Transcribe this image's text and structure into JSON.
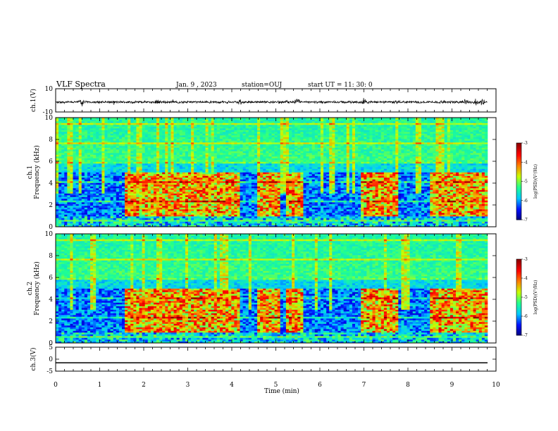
{
  "header": {
    "title": "VLF Spectra",
    "date": "Jan. 9 , 2023",
    "station": "station=OUJ",
    "start": "start  UT =   11: 30: 0"
  },
  "chart_data": [
    {
      "type": "line",
      "panel": "waveform-ch1",
      "ylabel": "ch.1(V)",
      "ylim": [
        -10,
        10
      ],
      "yticks": [
        "10",
        "-10"
      ],
      "xlim": [
        0,
        10
      ],
      "baseline": -1.5,
      "noise_amplitude": 0.8,
      "bursts_min": [
        0.6,
        2.3,
        4.2,
        5.5,
        7.0,
        9.3,
        9.55,
        9.7
      ],
      "color": "#000000"
    },
    {
      "type": "heatmap",
      "panel": "spectrogram-ch1",
      "ylabel": "ch.1\nFrequency (kHz)",
      "ylim": [
        0,
        10
      ],
      "yticks": [
        "0",
        "2",
        "4",
        "6",
        "8",
        "10"
      ],
      "xlim": [
        0,
        10
      ],
      "colorbar": {
        "label": "log(PSD)(V²/Hz)",
        "ticks": [
          "-3",
          "-4",
          "-5",
          "-6",
          "-7"
        ],
        "range": [
          -7,
          -3
        ]
      },
      "intense_segments_min": [
        [
          1.6,
          4.2
        ],
        [
          4.6,
          5.1
        ],
        [
          5.2,
          5.6
        ],
        [
          6.9,
          7.8
        ],
        [
          8.5,
          9.8
        ]
      ],
      "band_khz": [
        1.0,
        5.0
      ]
    },
    {
      "type": "heatmap",
      "panel": "spectrogram-ch2",
      "ylabel": "ch.2\nFrequency (kHz)",
      "ylim": [
        0,
        10
      ],
      "yticks": [
        "0",
        "2",
        "4",
        "6",
        "8",
        "10"
      ],
      "xlim": [
        0,
        10
      ],
      "colorbar": {
        "label": "log(PSD)(V²/Hz)",
        "ticks": [
          "-3",
          "-4",
          "-5",
          "-6",
          "-7"
        ],
        "range": [
          -7,
          -3
        ]
      },
      "intense_segments_min": [
        [
          1.6,
          4.2
        ],
        [
          4.6,
          5.1
        ],
        [
          5.2,
          5.6
        ],
        [
          6.9,
          7.8
        ],
        [
          8.5,
          9.8
        ]
      ],
      "band_khz": [
        1.0,
        5.0
      ]
    },
    {
      "type": "line",
      "panel": "waveform-ch3",
      "ylabel": "ch.3(V)",
      "ylim": [
        -5,
        5
      ],
      "yticks": [
        "5",
        "0",
        "-5"
      ],
      "xlim": [
        0,
        10
      ],
      "value": -1.5,
      "color": "#000000"
    }
  ],
  "xaxis": {
    "label": "Time (min)",
    "ticks": [
      "0",
      "1",
      "2",
      "3",
      "4",
      "5",
      "6",
      "7",
      "8",
      "9",
      "10"
    ]
  },
  "colors": {
    "colormap": [
      "#00007a",
      "#0010ff",
      "#00c8ff",
      "#20ff90",
      "#c8ff00",
      "#ff8000",
      "#ff0000",
      "#8b0000"
    ]
  }
}
